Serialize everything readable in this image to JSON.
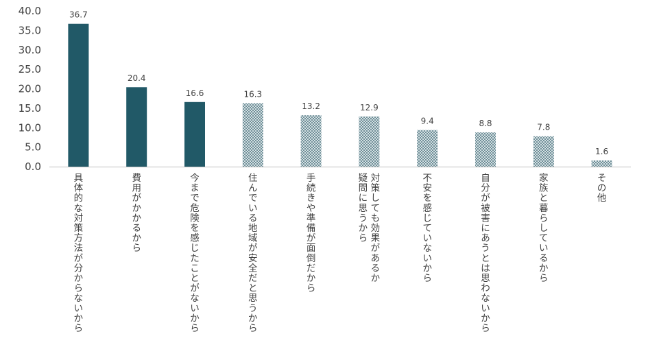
{
  "chart_data": {
    "type": "bar",
    "title": "",
    "xlabel": "",
    "ylabel": "",
    "ylim": [
      0,
      40
    ],
    "yticks": [
      "0.0",
      "5.0",
      "10.0",
      "15.0",
      "20.0",
      "25.0",
      "30.0",
      "35.0",
      "40.0"
    ],
    "grid": false,
    "legend": "none",
    "categories": [
      [
        "具体的な対策方法が分からないから"
      ],
      [
        "費用がかかるから"
      ],
      [
        "今まで危険を感じたことがないから"
      ],
      [
        "住んでいる地域が安全だと思うから"
      ],
      [
        "手続きや準備が面倒だから"
      ],
      [
        "対策しても効果があるか",
        "疑問に思うから"
      ],
      [
        "不安を感じていないから"
      ],
      [
        "自分が被害にあうとは思わないから"
      ],
      [
        "家族と暮らしているから"
      ],
      [
        "その他"
      ]
    ],
    "values": [
      36.7,
      20.4,
      16.6,
      16.3,
      13.2,
      12.9,
      9.4,
      8.8,
      7.8,
      1.6
    ],
    "value_labels": [
      "36.7",
      "20.4",
      "16.6",
      "16.3",
      "13.2",
      "12.9",
      "9.4",
      "8.8",
      "7.8",
      "1.6"
    ],
    "bar_style": [
      "solid",
      "solid",
      "solid",
      "pattern",
      "pattern",
      "pattern",
      "pattern",
      "pattern",
      "pattern",
      "pattern"
    ],
    "colors": {
      "solid": "#215967",
      "pattern_dark": "#6f8f98",
      "pattern_light": "#d5e0e3",
      "axis": "#bfbfbf",
      "text": "#404040"
    }
  }
}
